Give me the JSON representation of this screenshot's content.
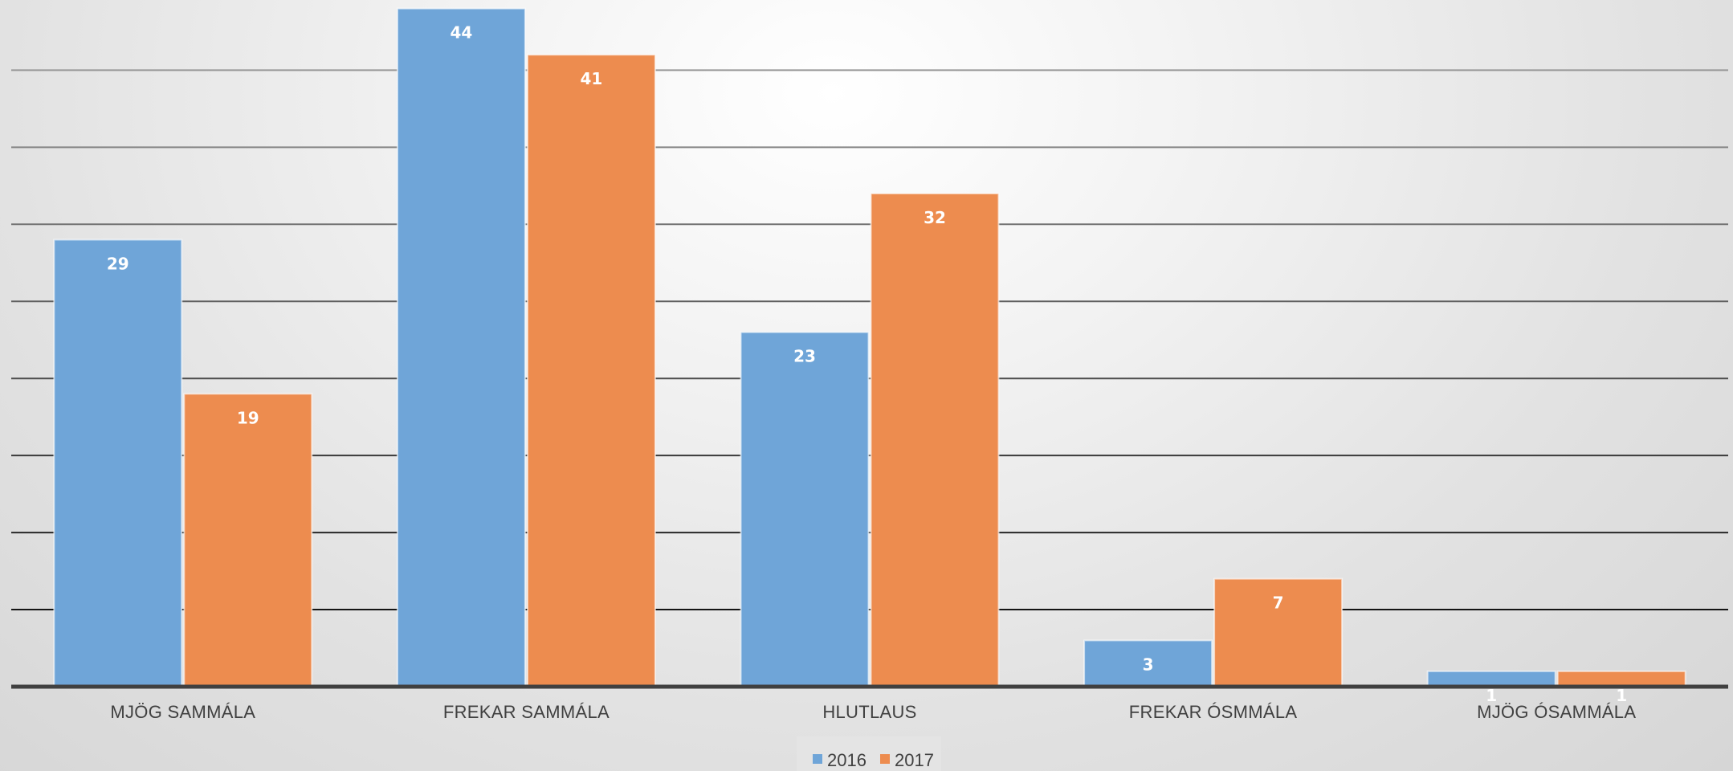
{
  "chart_data": {
    "type": "bar",
    "categories": [
      "MJÖG SAMMÁLA",
      "FREKAR SAMMÁLA",
      "HLUTLAUS",
      "FREKAR ÓSMMÁLA",
      "MJÖG ÓSAMMÁLA"
    ],
    "series": [
      {
        "name": "2016",
        "values": [
          29,
          44,
          23,
          3,
          1
        ],
        "color": "#6fa5d8"
      },
      {
        "name": "2017",
        "values": [
          19,
          41,
          32,
          7,
          1
        ],
        "color": "#ed8c4f"
      }
    ],
    "data_labels": true,
    "title": "",
    "xlabel": "",
    "ylabel": "",
    "ylim": [
      0,
      45
    ],
    "gridlines": true,
    "gridline_step": 5,
    "y_tick_labels_shown": false,
    "legend": {
      "position": "bottom",
      "entries": [
        "2016",
        "2017"
      ]
    }
  }
}
